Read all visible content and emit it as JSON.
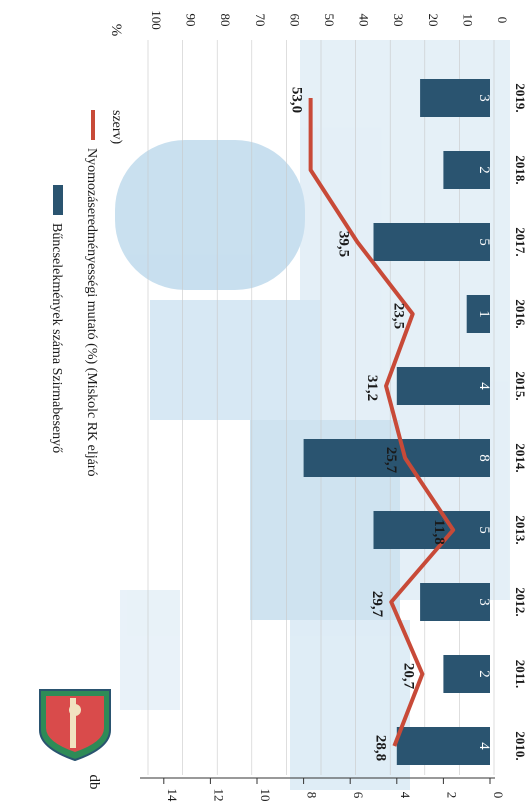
{
  "chart_data": {
    "type": "bar+line",
    "categories": [
      "2010.",
      "2011.",
      "2012.",
      "2013.",
      "2014.",
      "2015.",
      "2016.",
      "2017.",
      "2018.",
      "2019."
    ],
    "bars": {
      "name": "Bűncselekmények száma Szirmabesenyő",
      "values": [
        4,
        2,
        3,
        5,
        8,
        4,
        1,
        5,
        2,
        3
      ],
      "color": "#2a5470"
    },
    "line": {
      "name": "Nyomozáseredményességi mutató (%) (Miskolc RK eljáró szerv)",
      "values": [
        28.8,
        20.7,
        29.7,
        11.8,
        25.7,
        31.2,
        23.5,
        39.5,
        53.0,
        53.0
      ],
      "labels": [
        "28,8",
        "20,7",
        "29,7",
        "11,8",
        "25,7",
        "31,2",
        "23,5",
        "39,5",
        "",
        "53,0"
      ],
      "color": "#c84a38"
    },
    "left_axis": {
      "unit": "db",
      "ticks": [
        0,
        2,
        4,
        6,
        8,
        10,
        12,
        14
      ],
      "range": [
        0,
        15
      ]
    },
    "right_axis": {
      "unit": "%",
      "ticks": [
        0,
        10,
        20,
        30,
        40,
        50,
        60,
        70,
        80,
        90,
        100
      ],
      "range": [
        0,
        100
      ]
    },
    "orientation": "rotated-90-clockwise",
    "legend_position": "top-left"
  },
  "colors": {
    "background": "#ffffff",
    "photo_tint": "#a9cde4",
    "bar": "#2a5470",
    "line": "#c84a38",
    "text": "#1a1a1a"
  },
  "icons": [
    "coat-of-arms-icon"
  ]
}
